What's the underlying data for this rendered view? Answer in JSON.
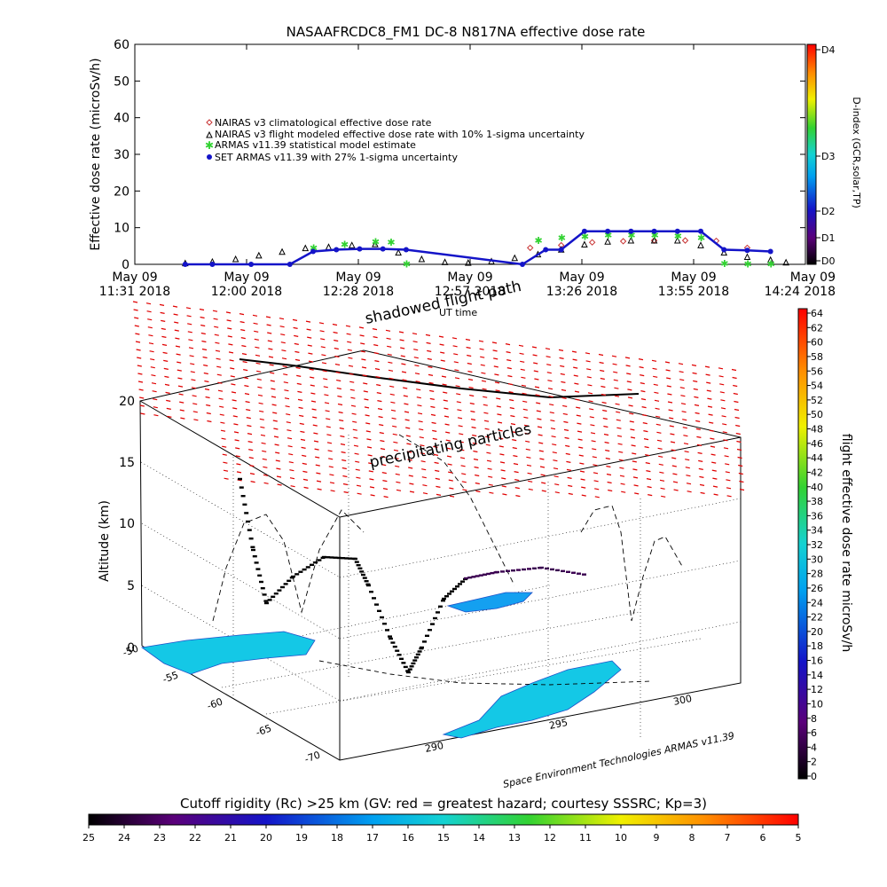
{
  "title": "NASAAFRCDC8_FM1 DC-8   N817NA effective dose rate",
  "chart_data": [
    {
      "type": "line",
      "title": "NASAAFRCDC8_FM1 DC-8   N817NA effective dose rate",
      "ylabel": "Effective dose rate (microSv/h)",
      "ylim": [
        0,
        60
      ],
      "yticks": [
        "0",
        "10",
        "20",
        "30",
        "40",
        "50",
        "60"
      ],
      "xticks": [
        {
          "d": "May 09",
          "t": "11:31 2018"
        },
        {
          "d": "May 09",
          "t": "12:00 2018"
        },
        {
          "d": "May 09",
          "t": "12:28 2018"
        },
        {
          "d": "May 09",
          "t": "12:57 2018"
        },
        {
          "d": "May 09",
          "t": "13:26 2018"
        },
        {
          "d": "May 09",
          "t": "13:55 2018"
        },
        {
          "d": "May 09",
          "t": "14:24 2018"
        }
      ],
      "x_minutes_range": [
        0,
        173
      ],
      "legend_position": "upper-left",
      "series": [
        {
          "name": "NAIRAS v3 climatological effective dose rate",
          "color": "#c83232",
          "marker": "diamond",
          "x": [
            102,
            110,
            118,
            126,
            134,
            142,
            150,
            158
          ],
          "y": [
            4.5,
            5.2,
            6.0,
            6.3,
            6.5,
            6.5,
            6.4,
            4.5
          ]
        },
        {
          "name": "NAIRAS v3 flight modeled effective dose rate with 10% 1-sigma uncertainty",
          "color": "#000000",
          "marker": "triangle",
          "x": [
            13,
            20,
            26,
            32,
            38,
            44,
            50,
            56,
            62,
            68,
            74,
            80,
            86,
            92,
            98,
            104,
            110,
            116,
            122,
            128,
            134,
            140,
            146,
            152,
            158,
            164,
            168
          ],
          "y": [
            0.1,
            0.5,
            1.2,
            2.2,
            3.2,
            4.2,
            4.5,
            5.0,
            5.3,
            3.0,
            1.2,
            0.4,
            0.2,
            0.6,
            1.5,
            2.5,
            3.8,
            5.2,
            6.0,
            6.3,
            6.3,
            6.3,
            5.0,
            3.0,
            1.8,
            1.0,
            0.3
          ]
        },
        {
          "name": "ARMAS v11.39 statistical model estimate",
          "color": "#32d232",
          "marker": "asterisk",
          "x": [
            46,
            54,
            62,
            66,
            70,
            104,
            110,
            116,
            122,
            128,
            134,
            140,
            146,
            152,
            158,
            164
          ],
          "y": [
            4.5,
            5.5,
            6.2,
            6.0,
            0.1,
            6.5,
            7.2,
            7.6,
            8.0,
            8.0,
            8.0,
            7.8,
            7.2,
            0.2,
            0.1,
            0.1
          ]
        },
        {
          "name": "SET ARMAS v11.39 with 27% 1-sigma uncertainty",
          "color": "#1414c8",
          "marker": "circle",
          "x": [
            13,
            20,
            30,
            40,
            46,
            52,
            58,
            64,
            70,
            100,
            106,
            110,
            116,
            122,
            128,
            134,
            140,
            146,
            152,
            158,
            164
          ],
          "y": [
            0,
            0,
            0,
            0,
            3.5,
            4.0,
            4.2,
            4.2,
            4.0,
            0,
            4.0,
            4.0,
            9.0,
            9.0,
            9.0,
            9.0,
            9.0,
            9.0,
            4.0,
            3.8,
            3.5
          ]
        }
      ],
      "colorbar": {
        "label": "D-index (GCR,solar,TP)",
        "ticks": [
          "D4",
          "D3",
          "D2",
          "D1",
          "D0"
        ]
      }
    },
    {
      "type": "3d-trajectory",
      "zlabel": "Altitude (km)",
      "zlim": [
        0,
        20
      ],
      "zticks": [
        "0",
        "5",
        "10",
        "15",
        "20"
      ],
      "lat_ticks": [
        "-50",
        "-55",
        "-60",
        "-65",
        "-70"
      ],
      "lon_ticks": [
        "290",
        "295",
        "300"
      ],
      "annotations": [
        "shadowed flight path",
        "UT time",
        "precipitating particles"
      ],
      "credit": "Space Environment Technologies ARMAS v11.39",
      "dose_colorbar": {
        "label": "flight effective dose rate microSv/h",
        "ticks": [
          "64",
          "62",
          "60",
          "58",
          "56",
          "54",
          "52",
          "50",
          "48",
          "46",
          "44",
          "42",
          "40",
          "38",
          "36",
          "34",
          "32",
          "30",
          "28",
          "26",
          "24",
          "22",
          "20",
          "18",
          "16",
          "14",
          "12",
          "10",
          "8",
          "6",
          "4",
          "2",
          "0"
        ]
      },
      "flight_altitude_km": [
        0.2,
        3,
        6,
        7.5,
        7.5,
        5,
        2,
        0.3,
        2.5,
        5,
        5.8,
        5.8,
        5.8,
        5.8
      ]
    },
    {
      "type": "colorbar",
      "title": "Cutoff rigidity (Rc) >25 km (GV: red = greatest hazard; courtesy SSSRC; Kp=3)",
      "ticks": [
        "25",
        "24",
        "23",
        "22",
        "21",
        "20",
        "19",
        "18",
        "17",
        "16",
        "15",
        "14",
        "13",
        "12",
        "11",
        "10",
        "9",
        "8",
        "7",
        "6",
        "5"
      ]
    }
  ],
  "colors": {
    "rainbow": [
      "#000000",
      "#5a007a",
      "#1414c8",
      "#00a0f0",
      "#14d2d2",
      "#32d232",
      "#f0f000",
      "#ff8c00",
      "#ff0000"
    ]
  }
}
